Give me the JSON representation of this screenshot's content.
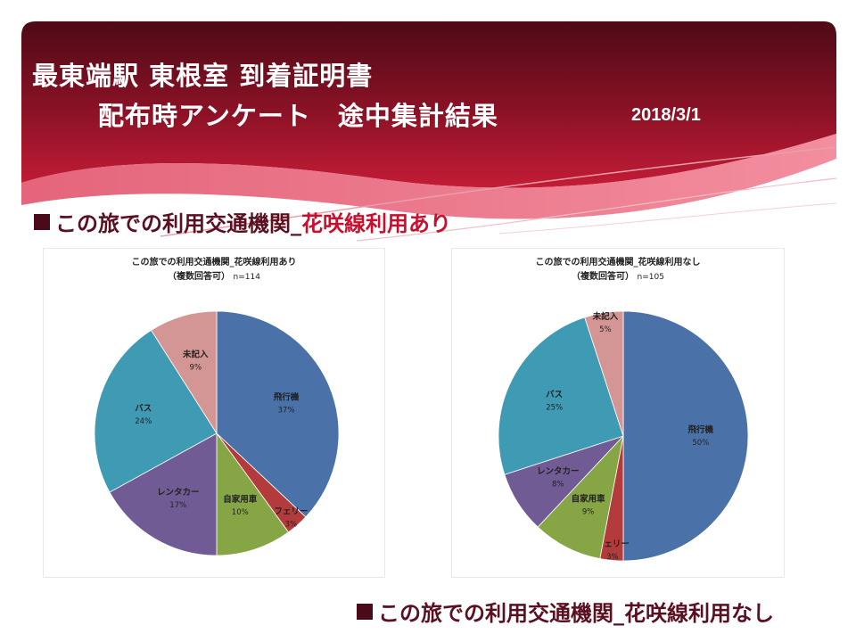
{
  "header": {
    "title_line1": "最東端駅 東根室 到着証明書",
    "title_line2": "配布時アンケート　途中集計結果",
    "date": "2018/3/1"
  },
  "sections": {
    "top_prefix": "この旅での利用交通機関_",
    "top_highlight": "花咲線利用あり",
    "bottom": "この旅での利用交通機関_花咲線利用なし"
  },
  "colors": {
    "banner_dark": "#5e0d1c",
    "banner_red": "#b0182f",
    "飛行機": "#4a72a8",
    "フェリー": "#b33b3b",
    "自家用車": "#86a646",
    "レンタカー": "#705b94",
    "バス": "#3f9bb3",
    "未記入": "#d49694"
  },
  "chart_data": [
    {
      "type": "pie",
      "title": "この旅での利用交通機関_花咲線利用あり",
      "subtitle": "（複数回答可）",
      "n_label": "n=114",
      "slices": [
        {
          "label": "飛行機",
          "value": 37,
          "pct_label": "37%"
        },
        {
          "label": "フェリー",
          "value": 3,
          "pct_label": "3%"
        },
        {
          "label": "自家用車",
          "value": 10,
          "pct_label": "10%"
        },
        {
          "label": "レンタカー",
          "value": 17,
          "pct_label": "17%"
        },
        {
          "label": "バス",
          "value": 24,
          "pct_label": "24%"
        },
        {
          "label": "未記入",
          "value": 9,
          "pct_label": "9%"
        }
      ]
    },
    {
      "type": "pie",
      "title": "この旅での利用交通機関_花咲線利用なし",
      "subtitle": "（複数回答可）",
      "n_label": "n=105",
      "slices": [
        {
          "label": "飛行機",
          "value": 50,
          "pct_label": "50%"
        },
        {
          "label": "フェリー",
          "value": 3,
          "pct_label": "3%"
        },
        {
          "label": "自家用車",
          "value": 9,
          "pct_label": "9%"
        },
        {
          "label": "レンタカー",
          "value": 8,
          "pct_label": "8%"
        },
        {
          "label": "バス",
          "value": 25,
          "pct_label": "25%"
        },
        {
          "label": "未記入",
          "value": 5,
          "pct_label": "5%"
        }
      ]
    }
  ]
}
